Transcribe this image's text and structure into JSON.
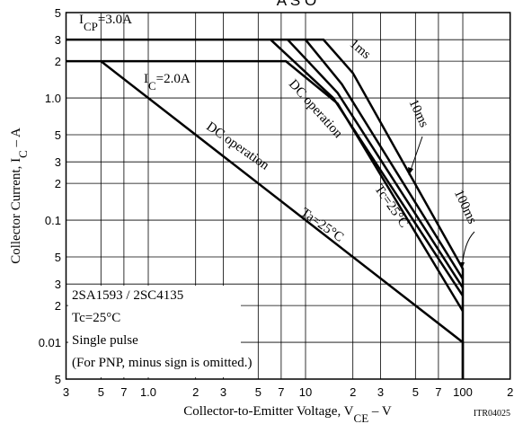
{
  "chart_data": {
    "type": "line",
    "title": "A S O",
    "log_x": true,
    "log_y": true,
    "grid": true,
    "color": "#000000",
    "xlim": [
      0.3,
      200
    ],
    "ylim": [
      0.005,
      5
    ],
    "xticks": [
      {
        "value": 0.3,
        "label": "3"
      },
      {
        "value": 0.5,
        "label": "5"
      },
      {
        "value": 0.7,
        "label": "7"
      },
      {
        "value": 1,
        "label": "1.0"
      },
      {
        "value": 2,
        "label": "2"
      },
      {
        "value": 3,
        "label": "3"
      },
      {
        "value": 5,
        "label": "5"
      },
      {
        "value": 7,
        "label": "7"
      },
      10,
      {
        "value": 20,
        "label": "2"
      },
      {
        "value": 30,
        "label": "3"
      },
      {
        "value": 50,
        "label": "5"
      },
      {
        "value": 70,
        "label": "7"
      },
      100,
      {
        "value": 200,
        "label": "2"
      }
    ],
    "yticks": [
      5,
      3,
      2,
      {
        "value": 1,
        "label": "1.0"
      },
      {
        "value": 0.5,
        "label": "5"
      },
      {
        "value": 0.3,
        "label": "3"
      },
      {
        "value": 0.2,
        "label": "2"
      },
      0.1,
      {
        "value": 0.05,
        "label": "5"
      },
      {
        "value": 0.03,
        "label": "3"
      },
      {
        "value": 0.02,
        "label": "2"
      },
      0.01,
      {
        "value": 0.005,
        "label": "5"
      }
    ],
    "x_label": [
      "Collector-to-Emitter Voltage, V",
      "CE",
      " – V"
    ],
    "y_label": [
      "Collector Current, I",
      "C",
      " – A"
    ],
    "figure_code": "ITR04025",
    "series": [
      {
        "name": "1ms",
        "x": [
          0.3,
          13,
          20,
          100,
          100
        ],
        "values": [
          3,
          3,
          1.6,
          0.04,
          0.005
        ]
      },
      {
        "name": "10ms",
        "x": [
          10,
          17,
          100
        ],
        "values": [
          3,
          1.3,
          0.033
        ]
      },
      {
        "name": "100ms",
        "x": [
          7.7,
          16,
          100
        ],
        "values": [
          3,
          1.1,
          0.028
        ]
      },
      {
        "x": [
          6,
          15,
          100
        ],
        "values": [
          3,
          1.0,
          0.024
        ]
      },
      {
        "name": "DC operation",
        "x": [
          0.3,
          7.5,
          16,
          100
        ],
        "values": [
          2,
          2,
          0.9,
          0.018
        ]
      },
      {
        "name": "DC operation",
        "x": [
          0.5,
          100,
          100
        ],
        "values": [
          2,
          0.01,
          0.005
        ]
      }
    ],
    "annotations": [
      [
        "I",
        "CP",
        "=3.0A"
      ],
      [
        "I",
        "C",
        "=2.0A"
      ],
      [
        "Tc=25°C"
      ],
      [
        "Ta=25°C"
      ]
    ],
    "notes": [
      "2SA1593 / 2SC4135",
      "Tc=25°C",
      "Single pulse",
      "(For PNP, minus sign is omitted.)"
    ]
  }
}
